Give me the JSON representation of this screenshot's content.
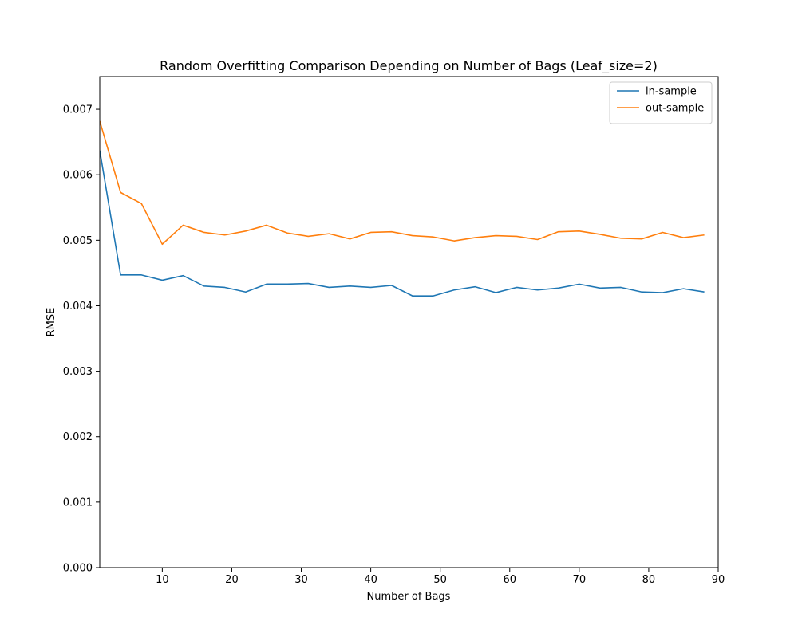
{
  "chart_data": {
    "type": "line",
    "title": "Random Overfitting Comparison Depending on Number of Bags (Leaf_size=2)",
    "xlabel": "Number of Bags",
    "ylabel": "RMSE",
    "xlim": [
      1,
      90
    ],
    "ylim": [
      0.0,
      0.0075
    ],
    "xticks": [
      10,
      20,
      30,
      40,
      50,
      60,
      70,
      80,
      90
    ],
    "xtick_labels": [
      "10",
      "20",
      "30",
      "40",
      "50",
      "60",
      "70",
      "80",
      "90"
    ],
    "yticks": [
      0.0,
      0.001,
      0.002,
      0.003,
      0.004,
      0.005,
      0.006,
      0.007
    ],
    "ytick_labels": [
      "0.000",
      "0.001",
      "0.002",
      "0.003",
      "0.004",
      "0.005",
      "0.006",
      "0.007"
    ],
    "grid": false,
    "legend_position": "top-right",
    "x": [
      1,
      4,
      7,
      10,
      13,
      16,
      19,
      22,
      25,
      28,
      31,
      34,
      37,
      40,
      43,
      46,
      49,
      52,
      55,
      58,
      61,
      64,
      67,
      70,
      73,
      76,
      79,
      82,
      85,
      88
    ],
    "series": [
      {
        "name": "in-sample",
        "color": "#1f77b4",
        "values": [
          0.00637,
          0.00447,
          0.00447,
          0.00439,
          0.00446,
          0.0043,
          0.00428,
          0.00421,
          0.00433,
          0.00433,
          0.00434,
          0.00428,
          0.0043,
          0.00428,
          0.00431,
          0.00415,
          0.00415,
          0.00424,
          0.00429,
          0.0042,
          0.00428,
          0.00424,
          0.00427,
          0.00433,
          0.00427,
          0.00428,
          0.00421,
          0.0042,
          0.00426,
          0.00421
        ]
      },
      {
        "name": "out-sample",
        "color": "#ff7f0e",
        "values": [
          0.00682,
          0.00573,
          0.00556,
          0.00494,
          0.00523,
          0.00512,
          0.00508,
          0.00514,
          0.00523,
          0.00511,
          0.00506,
          0.0051,
          0.00502,
          0.00512,
          0.00513,
          0.00507,
          0.00505,
          0.00499,
          0.00504,
          0.00507,
          0.00506,
          0.00501,
          0.00513,
          0.00514,
          0.00509,
          0.00503,
          0.00502,
          0.00512,
          0.00504,
          0.00508
        ]
      }
    ]
  }
}
